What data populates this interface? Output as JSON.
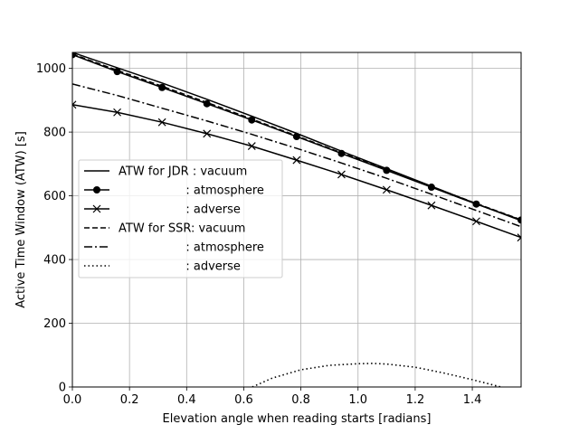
{
  "chart_data": {
    "type": "line",
    "title": "",
    "xlabel": "Elevation angle when reading starts [radians]",
    "ylabel": "Active Time Window (ATW) [s]",
    "xlim": [
      0,
      1.5708
    ],
    "ylim": [
      0,
      1050
    ],
    "xticks": [
      0.0,
      0.2,
      0.4,
      0.6,
      0.8,
      1.0,
      1.2,
      1.4
    ],
    "xtick_labels": [
      "0.0",
      "0.2",
      "0.4",
      "0.6",
      "0.8",
      "1.0",
      "1.2",
      "1.4"
    ],
    "yticks": [
      0,
      200,
      400,
      600,
      800,
      1000
    ],
    "ytick_labels": [
      "0",
      "200",
      "400",
      "600",
      "800",
      "1000"
    ],
    "grid": true,
    "legend_position": "center-left",
    "legend": [
      {
        "label": "ATW for JDR : vacuum",
        "line": "solid",
        "marker": "none"
      },
      {
        "label": "                  : atmosphere",
        "line": "solid",
        "marker": "circle"
      },
      {
        "label": "                  : adverse",
        "line": "solid",
        "marker": "x"
      },
      {
        "label": "ATW for SSR: vacuum",
        "line": "dashed",
        "marker": "none"
      },
      {
        "label": "                  : atmosphere",
        "line": "dashdot",
        "marker": "none"
      },
      {
        "label": "                  : adverse",
        "line": "dotted",
        "marker": "none"
      }
    ],
    "series": [
      {
        "line": "solid",
        "marker": "none",
        "x": [
          0.0,
          0.157,
          0.314,
          0.471,
          0.628,
          0.785,
          0.942,
          1.1,
          1.257,
          1.414,
          1.5708
        ],
        "values": [
          1050,
          1002,
          954,
          903,
          850,
          796,
          740,
          685,
          630,
          575,
          522
        ]
      },
      {
        "line": "solid",
        "marker": "circle",
        "x": [
          0.0,
          0.157,
          0.314,
          0.471,
          0.628,
          0.785,
          0.942,
          1.1,
          1.257,
          1.414,
          1.5708
        ],
        "values": [
          1043,
          990,
          940,
          889,
          838,
          786,
          733,
          680,
          627,
          574,
          524
        ]
      },
      {
        "line": "solid",
        "marker": "x",
        "x": [
          0.0,
          0.157,
          0.314,
          0.471,
          0.628,
          0.785,
          0.942,
          1.1,
          1.257,
          1.414,
          1.5708
        ],
        "values": [
          886,
          862,
          831,
          795,
          756,
          712,
          667,
          619,
          570,
          520,
          469
        ]
      },
      {
        "line": "dashed",
        "marker": "none",
        "x": [
          0.0,
          0.157,
          0.314,
          0.471,
          0.628,
          0.785,
          0.942,
          1.1,
          1.257,
          1.414,
          1.5708
        ],
        "values": [
          1045,
          994,
          944,
          893,
          841,
          788,
          735,
          682,
          629,
          576,
          525
        ]
      },
      {
        "line": "dashdot",
        "marker": "none",
        "x": [
          0.0,
          0.157,
          0.314,
          0.471,
          0.628,
          0.785,
          0.942,
          1.1,
          1.257,
          1.414,
          1.5708
        ],
        "values": [
          951,
          915,
          875,
          835,
          793,
          749,
          703,
          655,
          605,
          554,
          503
        ]
      },
      {
        "line": "dotted",
        "marker": "none",
        "x": [
          0.63,
          0.7,
          0.8,
          0.9,
          1.0,
          1.05,
          1.1,
          1.2,
          1.3,
          1.4,
          1.5
        ],
        "values": [
          0,
          28,
          54,
          68,
          73,
          74,
          72,
          62,
          44,
          23,
          0
        ]
      }
    ]
  }
}
